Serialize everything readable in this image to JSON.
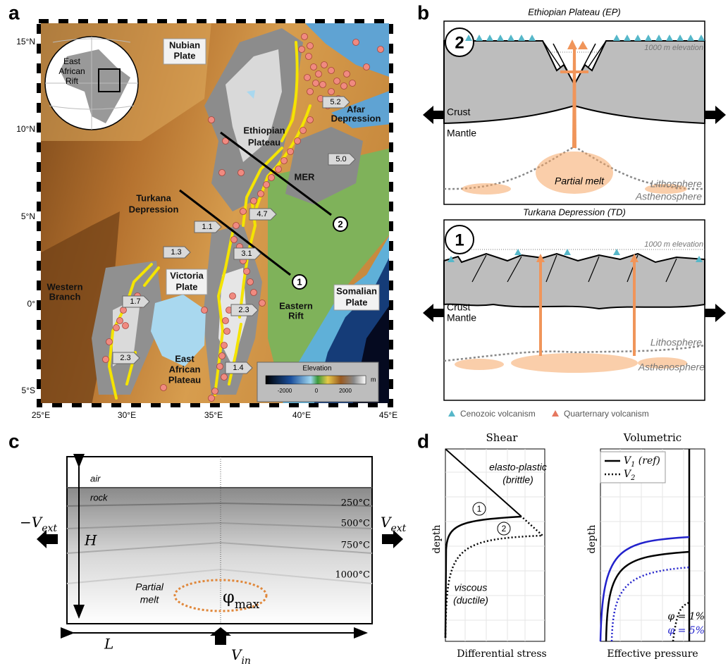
{
  "panel_a": {
    "label": "a",
    "lat_ticks": [
      "15°N",
      "10°N",
      "5°N",
      "0°",
      "5°S"
    ],
    "lon_ticks": [
      "25°E",
      "30°E",
      "35°E",
      "40°E",
      "45°E"
    ],
    "inset": [
      "East",
      "African",
      "Rift"
    ],
    "places": {
      "nubian": [
        "Nubian",
        "Plate"
      ],
      "ethiopian": [
        "Ethiopian",
        "Plateau"
      ],
      "afar": [
        "Afar",
        "Depression"
      ],
      "mer": "MER",
      "turkana": [
        "Turkana",
        "Depression"
      ],
      "victoria": [
        "Victoria",
        "Plate"
      ],
      "western": [
        "Western",
        "Branch"
      ],
      "eastern": [
        "Eastern",
        "Rift"
      ],
      "somalian": [
        "Somalian",
        "Plate"
      ],
      "eap": [
        "East",
        "African",
        "Plateau"
      ]
    },
    "rates": [
      "5.2",
      "5.0",
      "4.7",
      "1.1",
      "1.3",
      "3.1",
      "1.7",
      "2.3",
      "2.3",
      "1.4"
    ],
    "profiles": [
      "1",
      "2"
    ],
    "elevation_legend": {
      "title": "Elevation",
      "ticks": [
        "-2000",
        "0",
        "2000"
      ],
      "unit": "m"
    }
  },
  "panel_b": {
    "label": "b",
    "top": {
      "title": "Ethiopian Plateau (EP)",
      "marker": "2",
      "elevation": "1000 m elevation",
      "crust": "Crust",
      "mantle": "Mantle",
      "melt": "Partial melt",
      "lithosphere": "Lithosphere",
      "asthenosphere": "Asthenosphere"
    },
    "bottom": {
      "title": "Turkana Depression (TD)",
      "marker": "1",
      "elevation": "1000 m elevation",
      "crust": "Crust",
      "mantle": "Mantle",
      "lithosphere": "Lithosphere",
      "asthenosphere": "Asthenosphere"
    },
    "legend": [
      "Cenozoic volcanism",
      "Quarternary volcanism"
    ]
  },
  "panel_c": {
    "label": "c",
    "air": "air",
    "rock": "rock",
    "isotherms": [
      "250°C",
      "500°C",
      "750°C",
      "1000°C"
    ],
    "v_left": {
      "base": "−V",
      "sub": "ext"
    },
    "v_right": {
      "base": "V",
      "sub": "ext"
    },
    "v_in": {
      "base": "V",
      "sub": "in"
    },
    "height": "H",
    "length": "L",
    "melt": [
      "Partial",
      "melt"
    ],
    "phi": {
      "base": "φ",
      "sub": "max"
    }
  },
  "panel_d": {
    "label": "d",
    "shear": {
      "title": "Shear",
      "brittle": [
        "elasto-plastic",
        "(brittle)"
      ],
      "ductile": [
        "viscous",
        "(ductile)"
      ],
      "ylabel": "depth",
      "xlabel": "Differential stress",
      "markers": [
        "1",
        "2"
      ]
    },
    "volumetric": {
      "title": "Volumetric",
      "legend": [
        {
          "base": "V",
          "sub": "1",
          "rest": " (ref)"
        },
        {
          "base": "V",
          "sub": "2"
        }
      ],
      "ylabel": "depth",
      "xlabel": "Effective pressure",
      "phi": [
        "φ = 1%",
        "φ = 5%"
      ]
    }
  }
}
